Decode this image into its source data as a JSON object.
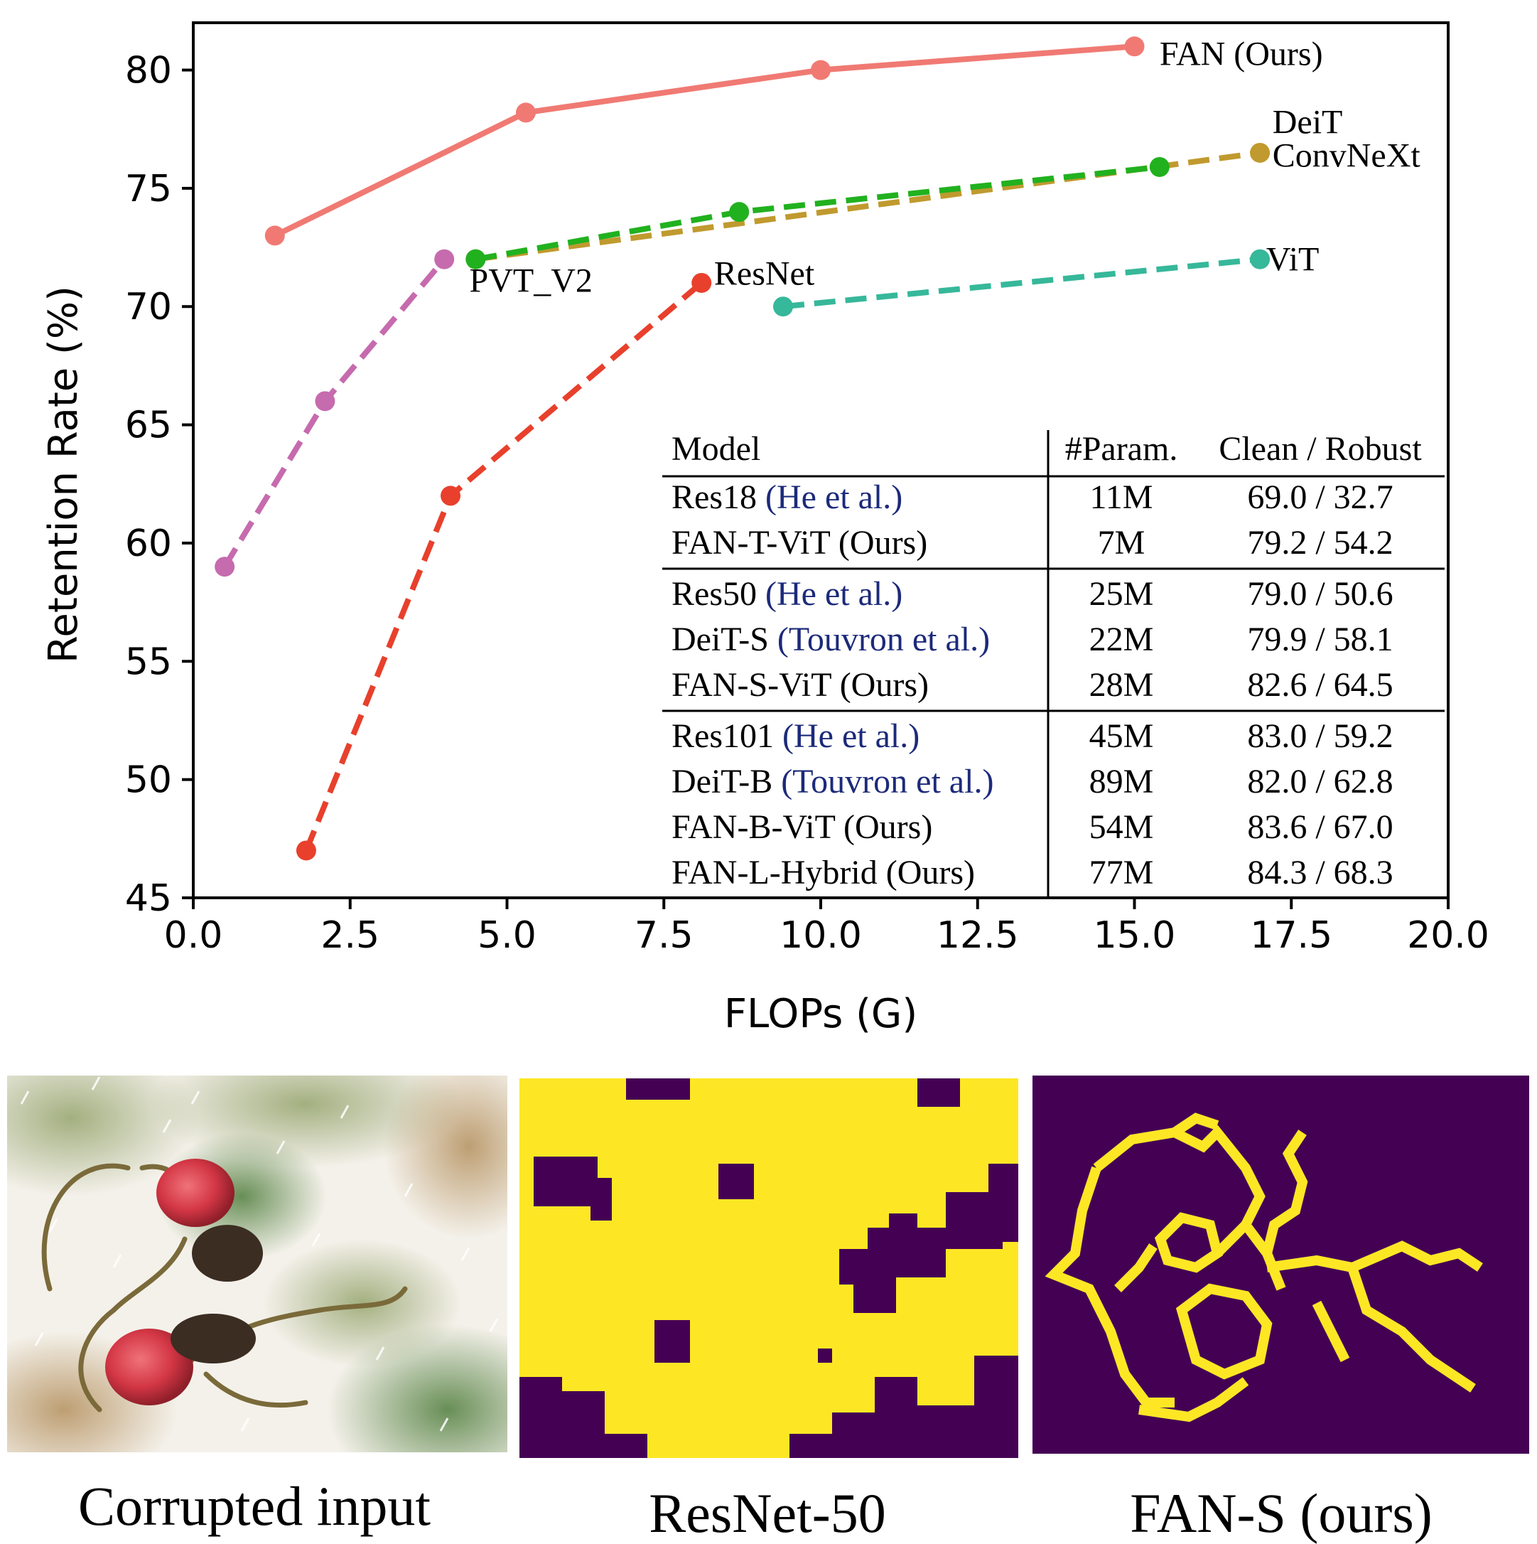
{
  "chart_data": {
    "type": "line",
    "xlabel": "FLOPs (G)",
    "ylabel": "Retention Rate (%)",
    "xlim": [
      0,
      20
    ],
    "ylim": [
      45,
      82
    ],
    "x_ticks": [
      "0.0",
      "2.5",
      "5.0",
      "7.5",
      "10.0",
      "12.5",
      "15.0",
      "17.5",
      "20.0"
    ],
    "y_ticks": [
      "45",
      "50",
      "55",
      "60",
      "65",
      "70",
      "75",
      "80"
    ],
    "grid": false,
    "series": [
      {
        "name": "FAN (Ours)",
        "color": "#f07a73",
        "dashed": false,
        "x": [
          1.3,
          5.3,
          10.0,
          15.0
        ],
        "y": [
          73.0,
          78.2,
          80.0,
          81.0
        ]
      },
      {
        "name": "DeiT",
        "color": "#c09a2e",
        "dashed": true,
        "x": [
          4.5,
          17.0
        ],
        "y": [
          72.0,
          76.5
        ]
      },
      {
        "name": "ConvNeXt",
        "color": "#21b11f",
        "dashed": true,
        "x": [
          4.5,
          8.7,
          15.4
        ],
        "y": [
          72.0,
          74.0,
          75.9
        ]
      },
      {
        "name": "PVT_V2",
        "color": "#c66bae",
        "dashed": true,
        "x": [
          0.5,
          2.1,
          4.0
        ],
        "y": [
          59.0,
          66.0,
          72.0
        ]
      },
      {
        "name": "ResNet",
        "color": "#e8402c",
        "dashed": true,
        "x": [
          1.8,
          4.1,
          8.1
        ],
        "y": [
          47.0,
          62.0,
          71.0
        ]
      },
      {
        "name": "ViT",
        "color": "#36b89a",
        "dashed": true,
        "x": [
          9.4,
          17.0
        ],
        "y": [
          70.0,
          72.0
        ]
      }
    ],
    "annotations": [
      {
        "text": "FAN (Ours)",
        "x": 15.4,
        "y": 80.7
      },
      {
        "text": "DeiT",
        "x": 17.2,
        "y": 77.8
      },
      {
        "text": "ConvNeXt",
        "x": 17.2,
        "y": 76.4
      },
      {
        "text": "PVT_V2",
        "x": 4.4,
        "y": 71.1
      },
      {
        "text": "ResNet",
        "x": 8.3,
        "y": 71.4
      },
      {
        "text": "ViT",
        "x": 17.1,
        "y": 72.0
      }
    ],
    "table": {
      "headers": [
        "Model",
        "#Param.",
        "Clean / Robust"
      ],
      "groups": [
        [
          {
            "name": "Res18",
            "cite": "(He et al.)",
            "params": "11M",
            "score": "69.0 / 32.7"
          },
          {
            "name": "FAN-T-ViT (Ours)",
            "cite": "",
            "params": "7M",
            "score": "79.2 / 54.2"
          }
        ],
        [
          {
            "name": "Res50",
            "cite": "(He et al.)",
            "params": "25M",
            "score": "79.0 / 50.6"
          },
          {
            "name": "DeiT-S",
            "cite": "(Touvron et al.)",
            "params": "22M",
            "score": "79.9 / 58.1"
          },
          {
            "name": "FAN-S-ViT (Ours)",
            "cite": "",
            "params": "28M",
            "score": "82.6 / 64.5"
          }
        ],
        [
          {
            "name": "Res101",
            "cite": "(He et al.)",
            "params": "45M",
            "score": "83.0 / 59.2"
          },
          {
            "name": "DeiT-B",
            "cite": "(Touvron et al.)",
            "params": "89M",
            "score": "82.0 / 62.8"
          },
          {
            "name": "FAN-B-ViT (Ours)",
            "cite": "",
            "params": "54M",
            "score": "83.6 / 67.0"
          },
          {
            "name": "FAN-L-Hybrid (Ours)",
            "cite": "",
            "params": "77M",
            "score": "84.3 / 68.3"
          }
        ]
      ]
    }
  },
  "images": {
    "input_caption": "Corrupted input",
    "resnet_caption": "ResNet-50",
    "fan_caption": "FAN-S (ours)",
    "mask_colors": {
      "background": "#440154",
      "foreground": "#fde725"
    }
  }
}
